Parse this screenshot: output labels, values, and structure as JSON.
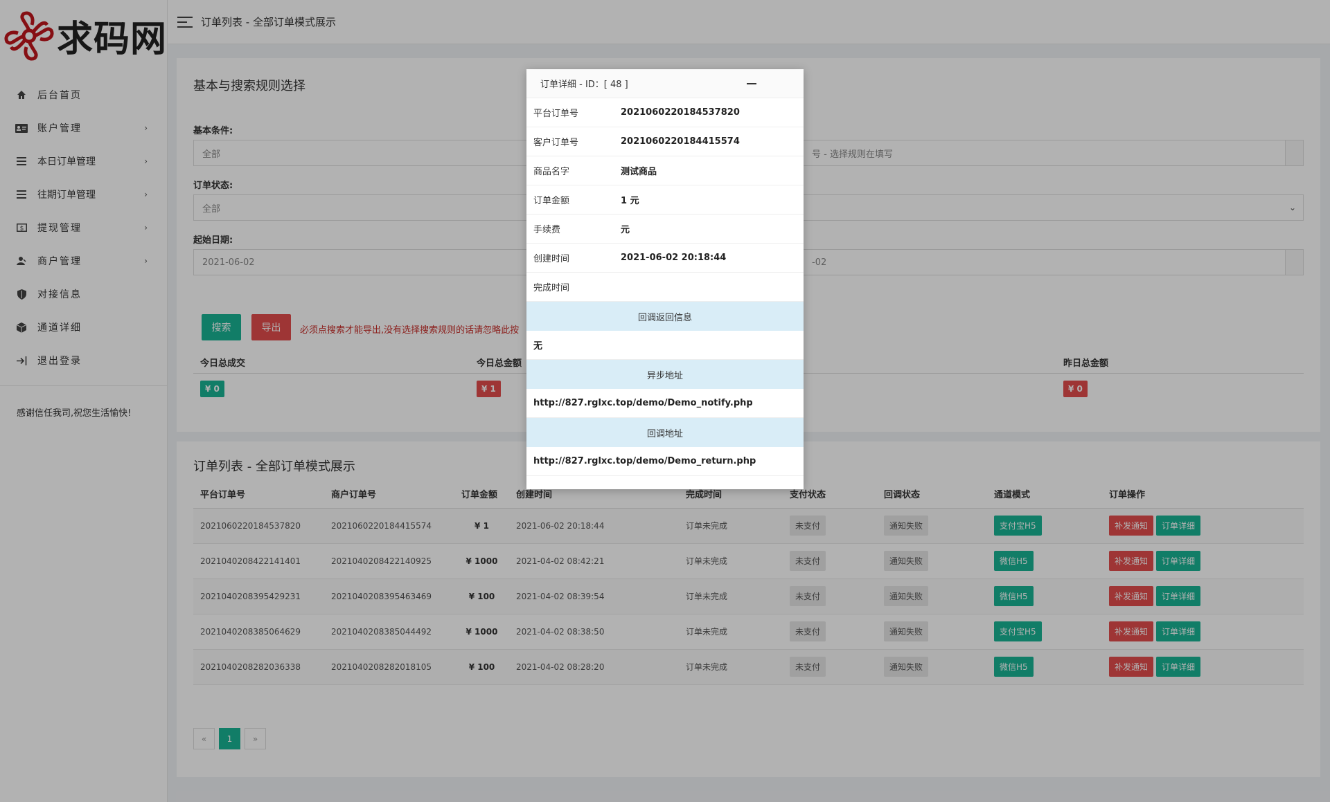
{
  "brand": {
    "name": "求码网"
  },
  "topbar": {
    "title": "订单列表 - 全部订单模式展示"
  },
  "sidebar": {
    "items": [
      {
        "label": "后台首页",
        "icon": "home-icon",
        "has_children": false
      },
      {
        "label": "账户管理",
        "icon": "id-card-icon",
        "has_children": true
      },
      {
        "label": "本日订单管理",
        "icon": "list-icon",
        "has_children": true
      },
      {
        "label": "往期订单管理",
        "icon": "list-icon",
        "has_children": true
      },
      {
        "label": "提现管理",
        "icon": "money-icon",
        "has_children": true
      },
      {
        "label": "商户管理",
        "icon": "user-icon",
        "has_children": true
      },
      {
        "label": "对接信息",
        "icon": "shield-icon",
        "has_children": false
      },
      {
        "label": "通道详细",
        "icon": "cube-icon",
        "has_children": false
      },
      {
        "label": "退出登录",
        "icon": "logout-icon",
        "has_children": false
      }
    ],
    "note": "感谢信任我司,祝您生活愉快!"
  },
  "search": {
    "title": "基本与搜索规则选择",
    "basic_label": "基本条件:",
    "basic_value": "全部",
    "keyword_placeholder": "号 - 选择规则在填写",
    "status_label": "订单状态:",
    "status_value": "全部",
    "start_label": "起始日期:",
    "start_value": "2021-06-02",
    "end_value": "-02",
    "search_button": "搜索",
    "export_button": "导出",
    "warning": "必须点搜索才能导出,没有选择搜索规则的话请忽略此按"
  },
  "stats": [
    {
      "label": "今日总成交",
      "value": "¥ 0",
      "color": "green"
    },
    {
      "label": "今日总金额",
      "value": "¥ 1",
      "color": "red"
    },
    {
      "label": "昨日总金额",
      "value": "¥ 0",
      "color": "red"
    }
  ],
  "orders": {
    "title": "订单列表 - 全部订单模式展示",
    "columns": [
      "平台订单号",
      "商户订单号",
      "订单金额",
      "创建时间",
      "完成时间",
      "支付状态",
      "回调状态",
      "通道模式",
      "订单操作"
    ],
    "rows": [
      {
        "platform_no": "2021060220184537820",
        "merchant_no": "2021060220184415574",
        "amount": "¥ 1",
        "created": "2021-06-02 20:18:44",
        "finished": "订单未完成",
        "pay_status": "未支付",
        "callback_status": "通知失败",
        "channel": "支付宝H5"
      },
      {
        "platform_no": "2021040208422141401",
        "merchant_no": "2021040208422140925",
        "amount": "¥ 1000",
        "created": "2021-04-02 08:42:21",
        "finished": "订单未完成",
        "pay_status": "未支付",
        "callback_status": "通知失败",
        "channel": "微信H5"
      },
      {
        "platform_no": "2021040208395429231",
        "merchant_no": "2021040208395463469",
        "amount": "¥ 100",
        "created": "2021-04-02 08:39:54",
        "finished": "订单未完成",
        "pay_status": "未支付",
        "callback_status": "通知失败",
        "channel": "微信H5"
      },
      {
        "platform_no": "2021040208385064629",
        "merchant_no": "2021040208385044492",
        "amount": "¥ 1000",
        "created": "2021-04-02 08:38:50",
        "finished": "订单未完成",
        "pay_status": "未支付",
        "callback_status": "通知失败",
        "channel": "支付宝H5"
      },
      {
        "platform_no": "2021040208282036338",
        "merchant_no": "2021040208282018105",
        "amount": "¥ 100",
        "created": "2021-04-02 08:28:20",
        "finished": "订单未完成",
        "pay_status": "未支付",
        "callback_status": "通知失败",
        "channel": "微信H5"
      }
    ],
    "resend_label": "补发通知",
    "detail_label": "订单详细"
  },
  "pagination": {
    "prev": "«",
    "current": "1",
    "next": "»"
  },
  "modal": {
    "title": "订单详细 - ID：[ 48 ]",
    "fields": [
      {
        "key": "平台订单号",
        "value": "2021060220184537820"
      },
      {
        "key": "客户订单号",
        "value": "2021060220184415574"
      },
      {
        "key": "商品名字",
        "value": "测试商品"
      },
      {
        "key": "订单金额",
        "value": "1 元"
      },
      {
        "key": "手续费",
        "value": "元"
      },
      {
        "key": "创建时间",
        "value": "2021-06-02 20:18:44"
      },
      {
        "key": "完成时间",
        "value": ""
      }
    ],
    "callback_info_header": "回调返回信息",
    "callback_info_value": "无",
    "notify_header": "异步地址",
    "notify_url": "http://827.rglxc.top/demo/Demo_notify.php",
    "return_header": "回调地址",
    "return_url": "http://827.rglxc.top/demo/Demo_return.php"
  },
  "colors": {
    "accent": "#19b394",
    "danger": "#e34d4d",
    "info_bg": "#d9edf7"
  }
}
